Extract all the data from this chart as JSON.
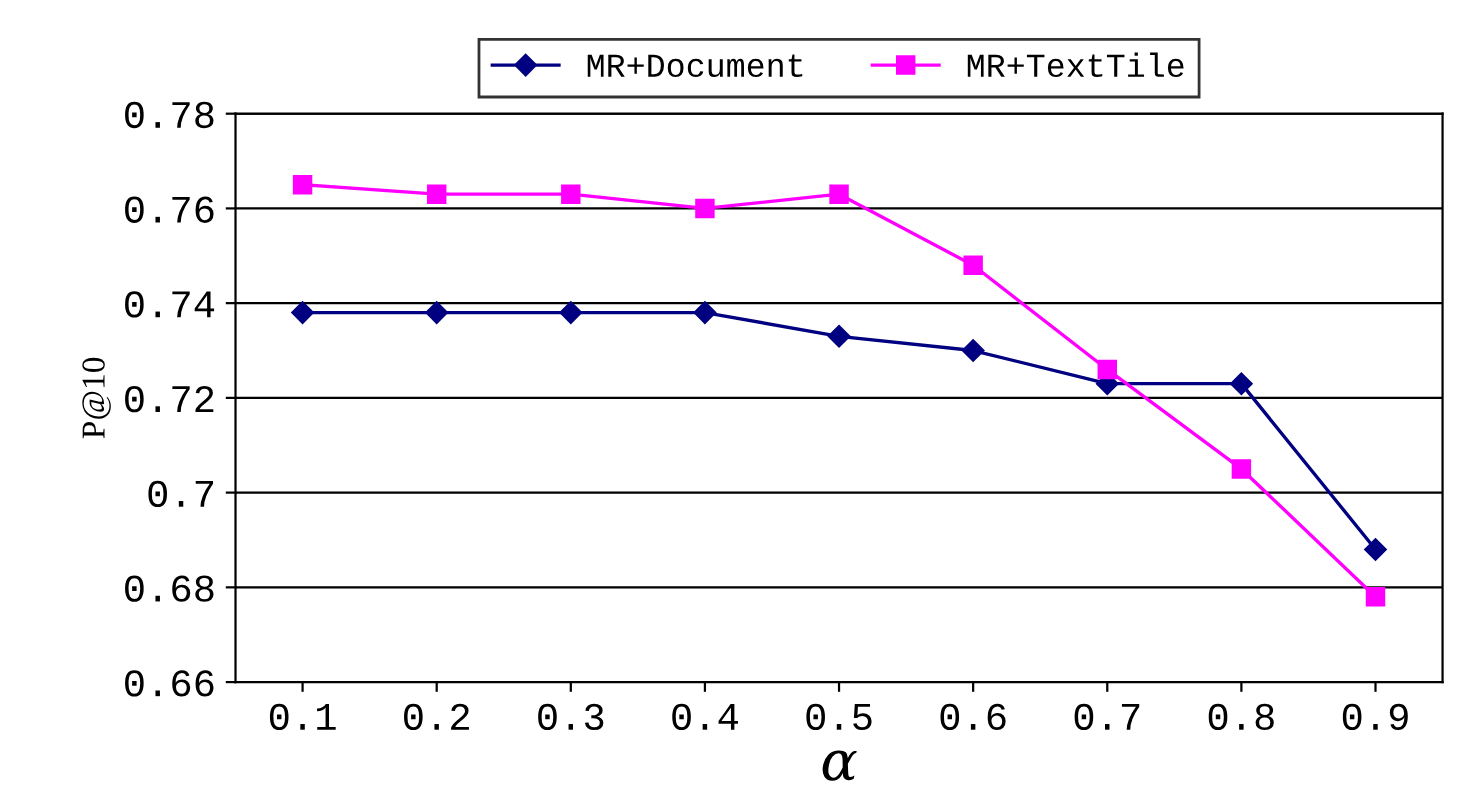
{
  "chart_data": {
    "type": "line",
    "xlabel": "α",
    "ylabel": "P@10",
    "categories": [
      "0.1",
      "0.2",
      "0.3",
      "0.4",
      "0.5",
      "0.6",
      "0.7",
      "0.8",
      "0.9"
    ],
    "series": [
      {
        "name": "MR+Document",
        "color": "#000080",
        "marker": "diamond",
        "values": [
          0.738,
          0.738,
          0.738,
          0.738,
          0.733,
          0.73,
          0.723,
          0.723,
          0.688
        ]
      },
      {
        "name": "MR+TextTile",
        "color": "#ff00ff",
        "marker": "square",
        "values": [
          0.765,
          0.763,
          0.763,
          0.76,
          0.763,
          0.748,
          0.726,
          0.705,
          0.678
        ]
      }
    ],
    "ylim": [
      0.66,
      0.78
    ],
    "yticks": [
      0.66,
      0.68,
      0.7,
      0.72,
      0.74,
      0.76,
      0.78
    ],
    "grid": "y",
    "legend": "top",
    "line_style": "solid"
  }
}
